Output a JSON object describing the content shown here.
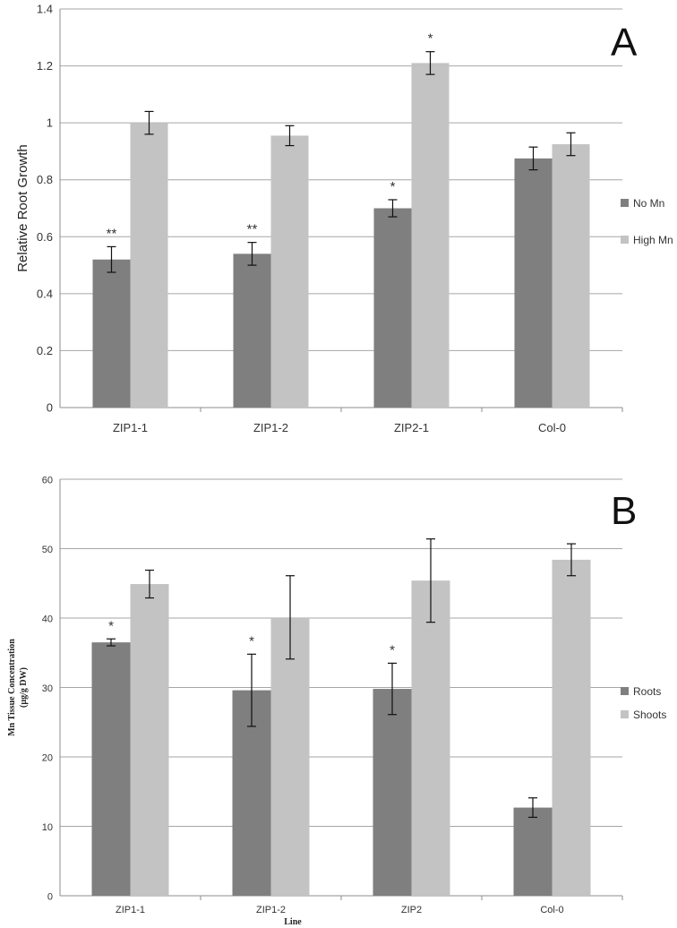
{
  "chart_data": [
    {
      "type": "bar",
      "panel_label": "A",
      "title": "",
      "xlabel": "",
      "ylabel": "Relative Root Growth",
      "ylim": [
        0,
        1.4
      ],
      "yticks": [
        0,
        0.2,
        0.4,
        0.6,
        0.8,
        1,
        1.2,
        1.4
      ],
      "ytick_labels": [
        "0",
        "0.2",
        "0.4",
        "0.6",
        "0.8",
        "1",
        "1.2",
        "1.4"
      ],
      "categories": [
        "ZIP1-1",
        "ZIP1-2",
        "ZIP2-1",
        "Col-0"
      ],
      "series": [
        {
          "name": "No Mn",
          "color": "#7f7f7f",
          "values": [
            0.52,
            0.54,
            0.7,
            0.875
          ],
          "errors": [
            0.045,
            0.04,
            0.03,
            0.04
          ],
          "significance": [
            "**",
            "**",
            "*",
            ""
          ]
        },
        {
          "name": "High Mn",
          "color": "#c3c3c3",
          "values": [
            1.0,
            0.955,
            1.21,
            0.925
          ],
          "errors": [
            0.04,
            0.035,
            0.04,
            0.04
          ],
          "significance": [
            "",
            "",
            "*",
            ""
          ]
        }
      ],
      "legend_position": "right",
      "grid": true
    },
    {
      "type": "bar",
      "panel_label": "B",
      "title": "",
      "xlabel": "Line",
      "ylabel_lines": [
        "Mn Tissue Concentration",
        "(µg/g DW)"
      ],
      "ylim": [
        0,
        60
      ],
      "yticks": [
        0,
        10,
        20,
        30,
        40,
        50,
        60
      ],
      "ytick_labels": [
        "0",
        "10",
        "20",
        "30",
        "40",
        "50",
        "60"
      ],
      "categories": [
        "ZIP1-1",
        "ZIP1-2",
        "ZIP2",
        "Col-0"
      ],
      "series": [
        {
          "name": "Roots",
          "color": "#7f7f7f",
          "values": [
            36.5,
            29.6,
            29.8,
            12.7
          ],
          "errors": [
            0.5,
            5.2,
            3.7,
            1.4
          ],
          "significance": [
            "*",
            "*",
            "*",
            ""
          ]
        },
        {
          "name": "Shoots",
          "color": "#c3c3c3",
          "values": [
            44.9,
            40.1,
            45.4,
            48.4
          ],
          "errors": [
            2.0,
            6.0,
            6.0,
            2.3
          ],
          "significance": [
            "",
            "",
            "",
            ""
          ]
        }
      ],
      "legend_position": "right",
      "grid": true
    }
  ]
}
